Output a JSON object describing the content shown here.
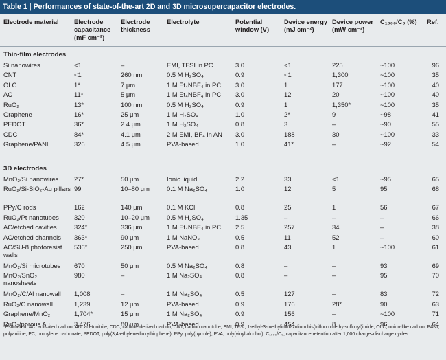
{
  "title": "Table 1 | Performances of state-of-the-art 2D and 3D microsupercapacitor electrodes.",
  "headers": {
    "material": "Electrode material",
    "capacitance": [
      "Electrode",
      "capacitance",
      "(mF cm⁻²)"
    ],
    "thickness": [
      "Electrode",
      "thickness"
    ],
    "electrolyte": "Electrolyte",
    "window": [
      "Potential",
      "window (V)"
    ],
    "energy": [
      "Device energy",
      "(mJ cm⁻²)"
    ],
    "power": [
      "Device power",
      "(mW cm⁻²)"
    ],
    "retention": "C₁₀₀₀/C₀ (%)",
    "ref": "Ref."
  },
  "sections": [
    {
      "label": "Thin-film electrodes",
      "rows": [
        {
          "name": "Si nanowires",
          "cap": "<1",
          "thick": "–",
          "elec": "EMI, TFSI in PC",
          "win": "3.0",
          "energy": "<1",
          "power": "225",
          "ret": "~100",
          "ref": "96"
        },
        {
          "name": "CNT",
          "cap": "<1",
          "thick": "260 nm",
          "elec": "0.5 M H₂SO₄",
          "win": "0.9",
          "energy": "<1",
          "power": "1,300",
          "ret": "~100",
          "ref": "35"
        },
        {
          "name": "OLC",
          "cap": "1*",
          "thick": "7 μm",
          "elec": "1 M Et₄NBF₄ in PC",
          "win": "3.0",
          "energy": "1",
          "power": "177",
          "ret": "~100",
          "ref": "40"
        },
        {
          "name": "AC",
          "cap": "11*",
          "thick": "5 μm",
          "elec": "1 M Et₄NBF₄ in PC",
          "win": "3.0",
          "energy": "12",
          "power": "20",
          "ret": "~100",
          "ref": "40"
        },
        {
          "name": "RuO₂",
          "cap": "13*",
          "thick": "100 nm",
          "elec": "0.5 M H₂SO₄",
          "win": "0.9",
          "energy": "1",
          "power": "1,350*",
          "ret": "~100",
          "ref": "35"
        },
        {
          "name": "Graphene",
          "cap": "16*",
          "thick": "25 μm",
          "elec": "1 M H₂SO₄",
          "win": "1.0",
          "energy": "2*",
          "power": "9",
          "ret": "~98",
          "ref": "41"
        },
        {
          "name": "PEDOT",
          "cap": "36*",
          "thick": "2.4 μm",
          "elec": "1 M H₂SO₄",
          "win": "0.8",
          "energy": "3",
          "power": "–",
          "ret": "~90",
          "ref": "55"
        },
        {
          "name": "CDC",
          "cap": "84*",
          "thick": "4.1 μm",
          "elec": "2 M EMI, BF₄ in AN",
          "win": "3.0",
          "energy": "188",
          "power": "30",
          "ret": "~100",
          "ref": "33"
        },
        {
          "name": "Graphene/PANI",
          "cap": "326",
          "thick": "4.5 μm",
          "elec": "PVA-based",
          "win": "1.0",
          "energy": "41*",
          "power": "–",
          "ret": "~92",
          "ref": "54"
        }
      ]
    },
    {
      "label": "3D electrodes",
      "rows": [
        {
          "name": "MnO₂/Si nanowires",
          "cap": "27*",
          "thick": "50 μm",
          "elec": "Ionic liquid",
          "win": "2.2",
          "energy": "33",
          "power": "<1",
          "ret": "~95",
          "ref": "65"
        },
        {
          "name": "RuO₂/Si-SiO₂-Au pillars",
          "cap": "99",
          "thick": "10–80 μm",
          "elec": "0.1 M Na₂SO₄",
          "win": "1.0",
          "energy": "12",
          "power": "5",
          "ret": "95",
          "ref": "68"
        },
        {
          "name": "PPy/C rods",
          "cap": "162",
          "thick": "140 μm",
          "elec": "0.1 M KCl",
          "win": "0.8",
          "energy": "25",
          "power": "1",
          "ret": "56",
          "ref": "67"
        },
        {
          "name": "RuO₂/Pt nanotubes",
          "cap": "320",
          "thick": "10–20 μm",
          "elec": "0.5 M H₂SO₄",
          "win": "1.35",
          "energy": "–",
          "power": "–",
          "ret": "–",
          "ref": "66"
        },
        {
          "name": "AC/etched cavities",
          "cap": "324*",
          "thick": "336 μm",
          "elec": "1 M Et₄NBF₄ in PC",
          "win": "2.5",
          "energy": "257",
          "power": "34",
          "ret": "–",
          "ref": "38"
        },
        {
          "name": "AC/etched channels",
          "cap": "363*",
          "thick": "90 μm",
          "elec": "1 M NaNO₃",
          "win": "0.5",
          "energy": "11",
          "power": "52",
          "ret": "–",
          "ref": "60"
        },
        {
          "name": "AC/SU-8 photoresist walls",
          "cap": "536*",
          "thick": "250 μm",
          "elec": "PVA-based",
          "win": "0.8",
          "energy": "43",
          "power": "1",
          "ret": "~100",
          "ref": "61"
        },
        {
          "name": "MnO₂/Si microtubes",
          "cap": "670",
          "thick": "50 μm",
          "elec": "0.5 M Na₂SO₄",
          "win": "0.8",
          "energy": "–",
          "power": "–",
          "ret": "93",
          "ref": "69"
        },
        {
          "name": "MnO₂/SnO₂ nanosheets",
          "cap": "980",
          "thick": "–",
          "elec": "1 M Na₂SO₄",
          "win": "0.8",
          "energy": "–",
          "power": "–",
          "ret": "95",
          "ref": "70"
        },
        {
          "name": "MnO₂/C/Al nanowall",
          "cap": "1,008",
          "thick": "–",
          "elec": "1 M Na₂SO₄",
          "win": "0.5",
          "energy": "127",
          "power": "–",
          "ret": "83",
          "ref": "72"
        },
        {
          "name": "RuO₂/C nanowall",
          "cap": "1,239",
          "thick": "12 μm",
          "elec": "PVA-based",
          "win": "0.9",
          "energy": "176",
          "power": "28*",
          "ret": "90",
          "ref": "63"
        },
        {
          "name": "Graphene/MnO₂",
          "cap": "1,704*",
          "thick": "15 μm",
          "elec": "1 M Na₂SO₄",
          "win": "0.9",
          "energy": "156",
          "power": "–",
          "ret": "~100",
          "ref": "71"
        },
        {
          "name": "RuO₂/porous Au",
          "cap": "3,476",
          "thick": "80 μm",
          "elec": "PVA-based",
          "win": "0.9",
          "energy": "454",
          "power": "8",
          "ret": "96",
          "ref": "64"
        }
      ]
    }
  ],
  "footnote": "*Estimated. AC, activated carbon; AN, acetonitrile; CDC, carbide-derived carbon; CNT, carbon nanotube; EMI, TFSI, 1-ethyl-3-methylimidazolium bis(trifluoromethylsulfonyl)imide; OLC, onion-like carbon; PANI, polyaniline; PC, propylene carbonate; PEDOT, poly(3,4-ethylenedioxythiophene); PPy, poly(pyrrole); PVA, poly(vinyl alcohol). C₁₀₀₀/C₀, capacitance retention after 1,000 charge–discharge cycles."
}
